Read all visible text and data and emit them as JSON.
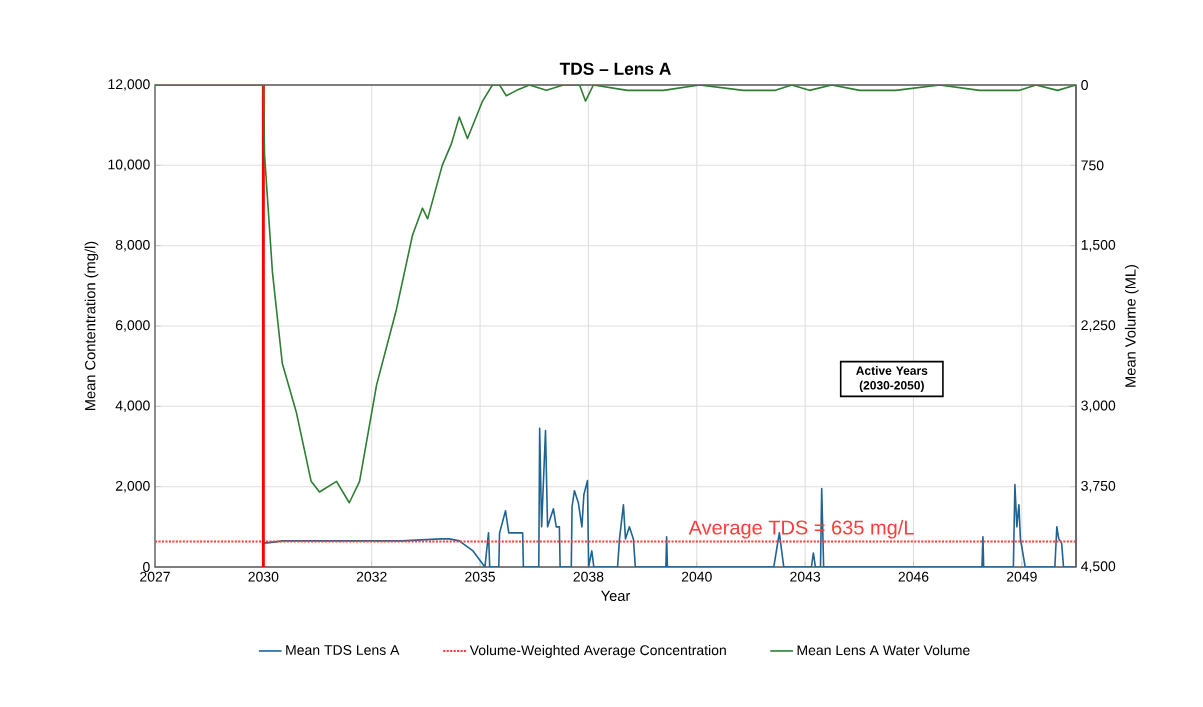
{
  "chart_data": {
    "type": "line",
    "title": "TDS – Lens A",
    "xlabel": "Year",
    "ylabel": "Mean  Contentration (mg/l)",
    "y2label": "Mean Volume (ML)",
    "xlim": [
      "2027-04-07",
      "2050-07-15"
    ],
    "xticks": [
      {
        "value": "2027-04-07",
        "label": "2027"
      },
      {
        "value": "2030-01-01",
        "label": "2030"
      },
      {
        "value": "2032-09-27",
        "label": "2032"
      },
      {
        "value": "2035-06-24",
        "label": "2035"
      },
      {
        "value": "2038-03-20",
        "label": "2038"
      },
      {
        "value": "2040-12-14",
        "label": "2040"
      },
      {
        "value": "2043-09-10",
        "label": "2043"
      },
      {
        "value": "2046-06-06",
        "label": "2046"
      },
      {
        "value": "2049-03-02",
        "label": "2049"
      }
    ],
    "ylim": [
      0,
      12000
    ],
    "yticks": [
      0,
      {
        "value": 2000,
        "label": "2,000"
      },
      {
        "value": 4000,
        "label": "4,000"
      },
      {
        "value": 6000,
        "label": "6,000"
      },
      {
        "value": 8000,
        "label": "8,000"
      },
      {
        "value": 10000,
        "label": "10,000"
      },
      {
        "value": 12000,
        "label": "12,000"
      }
    ],
    "y2lim": [
      4500,
      0
    ],
    "y2ticks": [
      0,
      750,
      {
        "value": 1500,
        "label": "1,500"
      },
      {
        "value": 2250,
        "label": "2,250"
      },
      {
        "value": 3000,
        "label": "3,000"
      },
      {
        "value": 3750,
        "label": "3,750"
      },
      {
        "value": 4500,
        "label": "4,500"
      }
    ],
    "series": [
      {
        "name": "Mean TDS Lens A",
        "color": "#1f6391",
        "x": [
          "2030-01-01",
          "2030-02-06",
          "2030-07-02",
          "2031-07-02",
          "2032-07-02",
          "2033-07-02",
          "2034-07-02",
          "2034-09-13",
          "2034-12-14",
          "2035-04-20",
          "2035-08-08",
          "2035-09-10",
          "2035-09-21",
          "2035-12-14",
          "2035-12-21",
          "2036-02-14",
          "2036-03-15",
          "2036-07-21",
          "2036-07-28",
          "2036-12-17",
          "2036-12-25",
          "2037-01-12",
          "2037-02-17",
          "2037-03-08",
          "2037-05-01",
          "2037-05-27",
          "2037-06-25",
          "2037-07-02",
          "2037-10-13",
          "2037-10-20",
          "2037-11-11",
          "2037-12-17",
          "2038-01-19",
          "2038-02-06",
          "2038-03-11",
          "2038-03-22",
          "2038-04-20",
          "2038-05-09",
          "2038-12-14",
          "2039-01-01",
          "2039-02-06",
          "2039-02-25",
          "2039-04-02",
          "2039-05-09",
          "2039-05-27",
          "2040-03-04",
          "2040-03-11",
          "2040-03-18",
          "2042-11-25",
          "2043-01-15",
          "2043-02-25",
          "2043-11-07",
          "2043-11-25",
          "2043-12-14",
          "2044-01-30",
          "2044-02-10",
          "2044-02-28",
          "2048-02-28",
          "2048-03-08",
          "2048-03-15",
          "2048-12-14",
          "2048-12-28",
          "2049-01-15",
          "2049-02-03",
          "2049-02-17",
          "2049-04-02",
          "2050-01-01",
          "2050-01-19",
          "2050-02-06",
          "2050-03-04",
          "2050-03-22",
          "2050-07-15"
        ],
        "values": [
          600,
          600,
          650,
          650,
          650,
          650,
          700,
          700,
          650,
          400,
          0,
          850,
          0,
          0,
          850,
          1400,
          850,
          850,
          0,
          0,
          3450,
          1000,
          3400,
          1000,
          1450,
          1000,
          1000,
          0,
          0,
          1500,
          1900,
          1600,
          1000,
          1800,
          2150,
          0,
          400,
          0,
          0,
          700,
          1550,
          700,
          1000,
          700,
          0,
          0,
          750,
          0,
          0,
          850,
          0,
          0,
          350,
          0,
          0,
          1950,
          0,
          0,
          750,
          0,
          0,
          2050,
          1000,
          1550,
          700,
          0,
          0,
          1000,
          700,
          600,
          0,
          0
        ]
      },
      {
        "name": "Volume-Weighted Average Concentration",
        "color": "#ff3b3b",
        "line_style": "dotted",
        "x": [
          "2027-04-07",
          "2050-07-15"
        ],
        "values": [
          635,
          635
        ]
      },
      {
        "name": "Mean Lens A Water Volume",
        "color": "#2e7d32",
        "axis": "y2",
        "x": [
          "2027-04-07",
          "2030-01-01",
          "2030-01-12",
          "2030-03-26",
          "2030-06-25",
          "2030-10-31",
          "2031-03-18",
          "2031-06-03",
          "2031-11-07",
          "2032-03-04",
          "2032-06-07",
          "2032-11-11",
          "2033-05-12",
          "2033-10-09",
          "2034-01-08",
          "2034-02-25",
          "2034-07-10",
          "2034-10-02",
          "2034-12-14",
          "2035-02-28",
          "2035-07-17",
          "2035-10-16",
          "2035-12-21",
          "2036-02-21",
          "2036-05-27",
          "2036-09-21",
          "2037-02-25",
          "2037-08-01",
          "2037-12-28",
          "2038-02-21",
          "2038-05-05",
          "2039-03-15",
          "2040-02-10",
          "2041-01-08",
          "2042-02-17",
          "2042-12-10",
          "2043-05-09",
          "2043-10-20",
          "2044-05-12",
          "2045-01-26",
          "2045-12-24",
          "2047-02-03",
          "2048-02-06",
          "2049-02-10",
          "2049-07-10",
          "2050-01-26",
          "2050-07-15"
        ],
        "values": [
          0,
          0,
          650,
          1750,
          2600,
          3050,
          3700,
          3800,
          3700,
          3900,
          3700,
          2800,
          2100,
          1400,
          1150,
          1250,
          750,
          550,
          300,
          500,
          150,
          0,
          0,
          100,
          50,
          0,
          50,
          0,
          0,
          150,
          0,
          50,
          50,
          0,
          50,
          50,
          0,
          50,
          0,
          50,
          50,
          0,
          50,
          50,
          0,
          50,
          0
        ]
      }
    ],
    "ref_lines": [
      {
        "axis": "x",
        "value": "2030-01-01",
        "color": "#ff0000"
      }
    ],
    "annotations": [
      {
        "text": "Average TDS = 635 mg/L",
        "x": "2043-08-08",
        "y": 635
      },
      "Active Years (2030-2050)"
    ],
    "grid": true,
    "legend": "bottom"
  }
}
